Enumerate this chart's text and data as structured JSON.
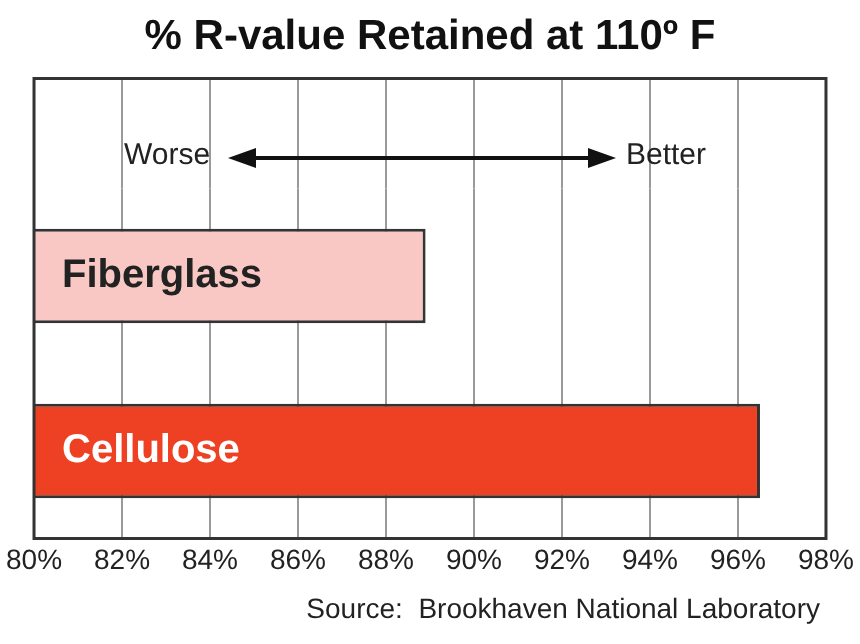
{
  "chart_data": {
    "type": "bar",
    "orientation": "horizontal",
    "title": "% R-value Retained at 110º F",
    "categories": [
      "Fiberglass",
      "Cellulose"
    ],
    "values": [
      88.9,
      96.5
    ],
    "colors": [
      "#f9c8c4",
      "#ee4123"
    ],
    "xlim": [
      80,
      98
    ],
    "xticks": [
      {
        "value": 80,
        "label": "80%"
      },
      {
        "value": 82,
        "label": "82%"
      },
      {
        "value": 84,
        "label": "84%"
      },
      {
        "value": 86,
        "label": "86%"
      },
      {
        "value": 88,
        "label": "88%"
      },
      {
        "value": 90,
        "label": "90%"
      },
      {
        "value": 92,
        "label": "92%"
      },
      {
        "value": 94,
        "label": "94%"
      },
      {
        "value": 96,
        "label": "96%"
      },
      {
        "value": 98,
        "label": "98%"
      }
    ],
    "grid": "x",
    "legend": false,
    "annotations": [
      "Worse",
      "Better",
      "Source:  Brookhaven National Laboratory"
    ]
  }
}
